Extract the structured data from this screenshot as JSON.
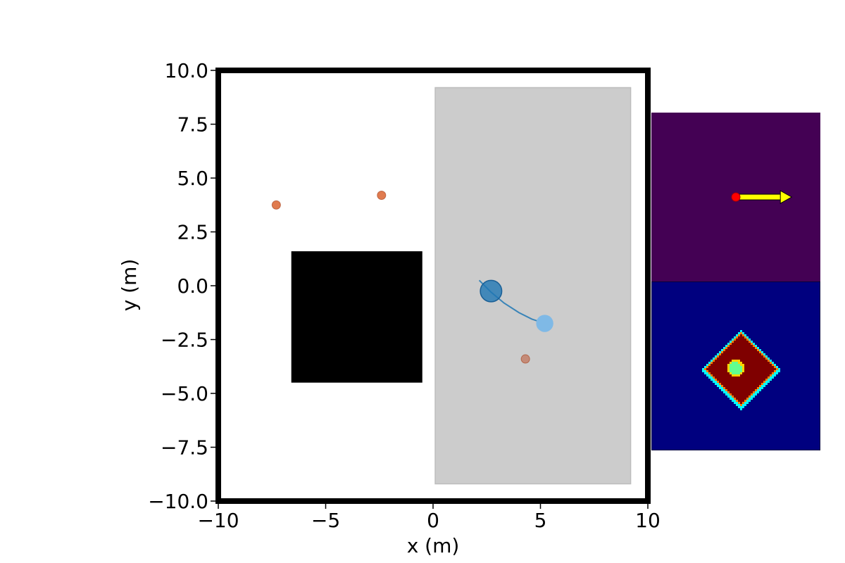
{
  "chart_data": {
    "type": "scatter",
    "xlabel": "x (m)",
    "ylabel": "y (m)",
    "xlim": [
      -10,
      10
    ],
    "ylim": [
      -10,
      10
    ],
    "grid": false,
    "xticks": [
      "−10",
      "−5",
      "0",
      "5",
      "10"
    ],
    "yticks": [
      "10.0",
      "7.5",
      "5.0",
      "2.5",
      "0.0",
      "−2.5",
      "−5.0",
      "−7.5",
      "−10.0"
    ],
    "regions": [
      {
        "name": "gray-zone",
        "x": [
          0.1,
          9.2
        ],
        "y": [
          -9.2,
          9.2
        ],
        "color": "#cccccc"
      },
      {
        "name": "obstacle",
        "x": [
          -6.6,
          -0.5
        ],
        "y": [
          -4.5,
          1.6
        ],
        "color": "#000000"
      }
    ],
    "agents": [
      {
        "name": "robot",
        "x": 2.7,
        "y": -0.25,
        "radius": 0.5,
        "color": "#1f77b4"
      },
      {
        "name": "goal",
        "x": 5.2,
        "y": -1.75,
        "radius": 0.4,
        "color": "#7fb9e6"
      }
    ],
    "trajectory": {
      "x": [
        2.15,
        2.7,
        3.3,
        4.0,
        4.6,
        5.2
      ],
      "y": [
        0.25,
        -0.3,
        -0.8,
        -1.25,
        -1.55,
        -1.75
      ],
      "color": "#1f77b4"
    },
    "pedestrians": [
      {
        "x": -7.3,
        "y": 3.75,
        "color": "#e07b4f"
      },
      {
        "x": -2.4,
        "y": 4.2,
        "color": "#e07b4f"
      },
      {
        "x": 4.3,
        "y": -3.4,
        "color": "#c48b78"
      }
    ]
  },
  "insets": {
    "top": {
      "background": "#440154",
      "marker_color": "#ff0000",
      "arrow_color": "#ffff00",
      "marker": [
        0.5,
        0.5
      ],
      "arrow_to": [
        0.83,
        0.5
      ]
    },
    "bottom": {
      "background": "#00007f",
      "diamond_fill": "#7f0000",
      "diamond_edge_colors": [
        "#ff8000",
        "#00ffff",
        "#ffff00"
      ],
      "center_color": "#60ff90",
      "center_ring": "#ffd400",
      "diamond_center": [
        0.53,
        0.52
      ],
      "diamond_half_size": [
        0.225,
        0.225
      ]
    }
  }
}
